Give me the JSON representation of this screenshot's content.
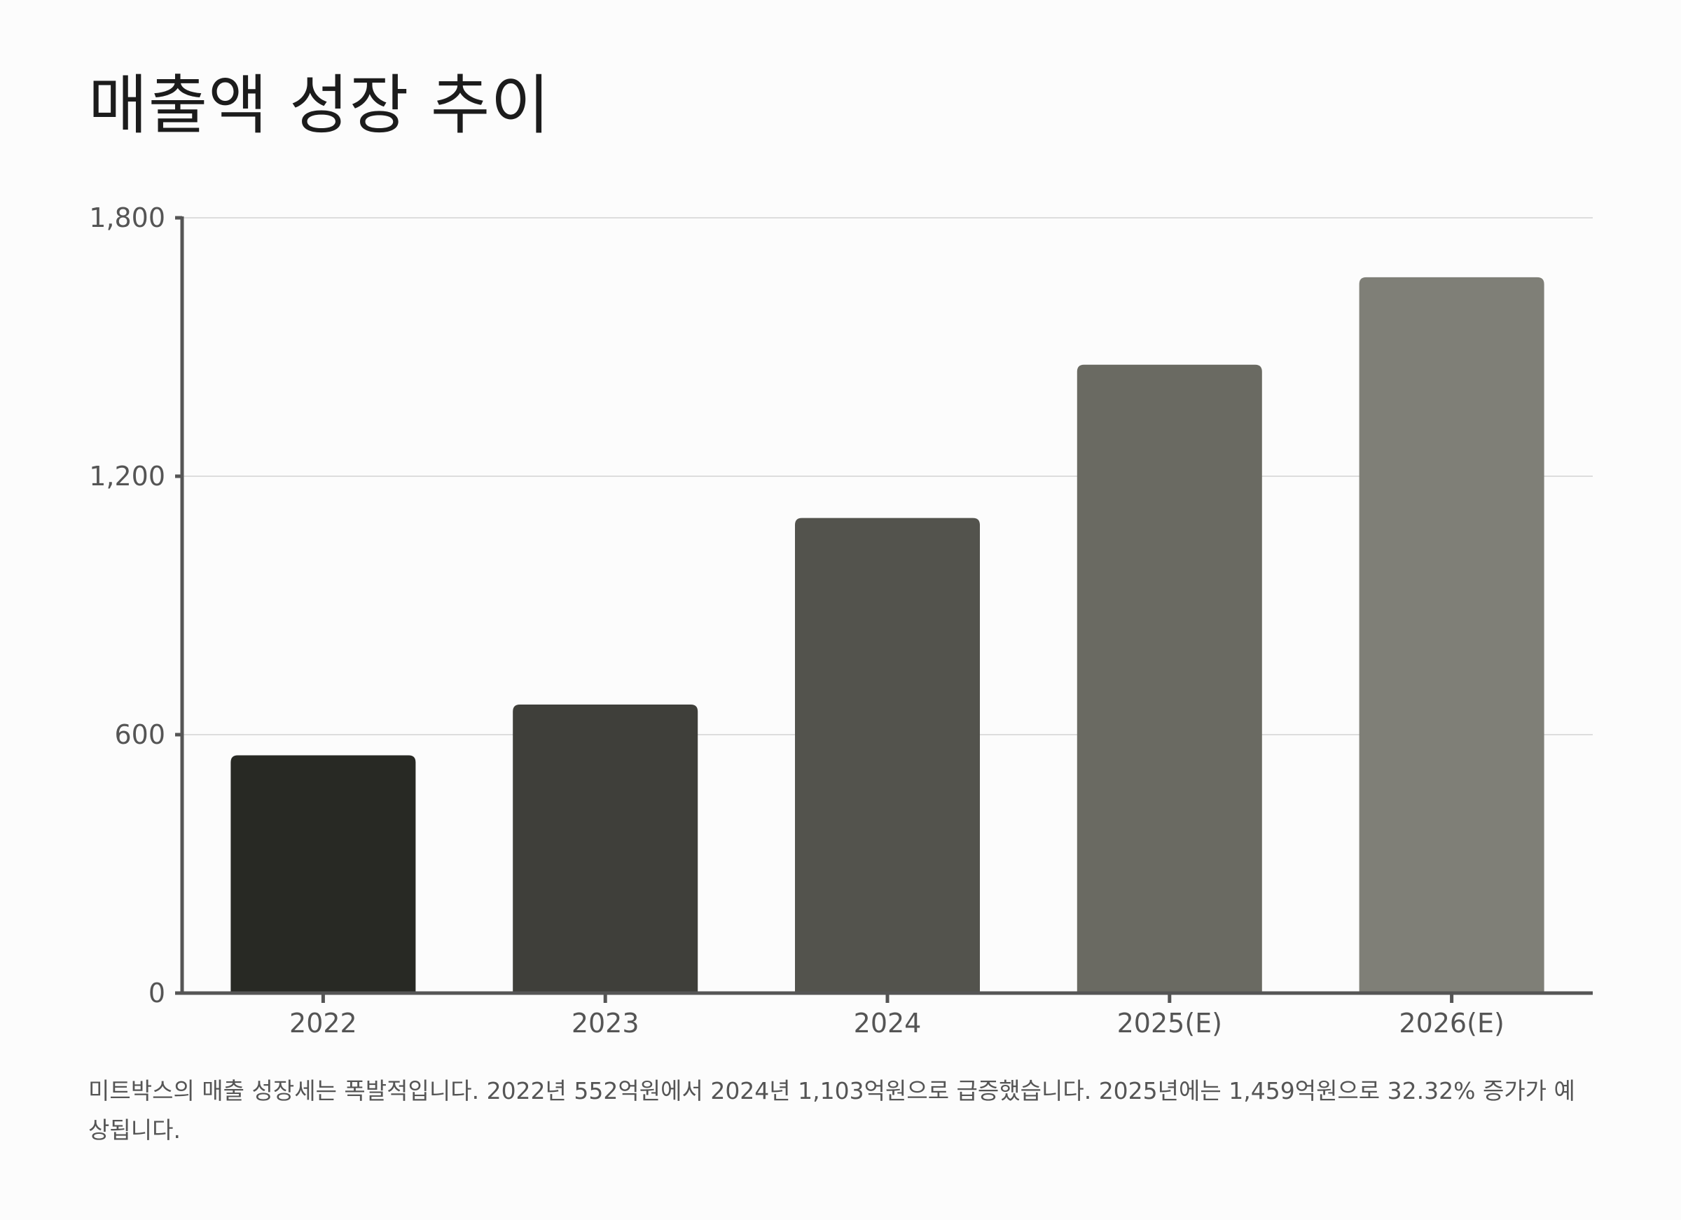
{
  "title": "매출액 성장 추이",
  "caption": "미트박스의 매출 성장세는 폭발적입니다. 2022년 552억원에서 2024년 1,103억원으로 급증했습니다. 2025년에는 1,459억원으로 32.32% 증가가 예상됩니다.",
  "colors": {
    "background": "#fcfcfc",
    "axis": "#555555",
    "grid": "#dddddd",
    "title": "#1c1c1c",
    "bars": [
      "#282924",
      "#3f3f3a",
      "#53534d",
      "#6a6a62",
      "#7f7f77"
    ]
  },
  "chart_data": {
    "type": "bar",
    "categories": [
      "2022",
      "2023",
      "2024",
      "2025(E)",
      "2026(E)"
    ],
    "values": [
      552,
      670,
      1103,
      1459,
      1662
    ],
    "title": "매출액 성장 추이",
    "xlabel": "",
    "ylabel": "",
    "ylim": [
      0,
      1800
    ],
    "yticks": [
      0,
      600,
      1200,
      1800
    ],
    "ytick_labels": [
      "0",
      "600",
      "1,200",
      "1,800"
    ],
    "grid": true,
    "legend": "none"
  }
}
